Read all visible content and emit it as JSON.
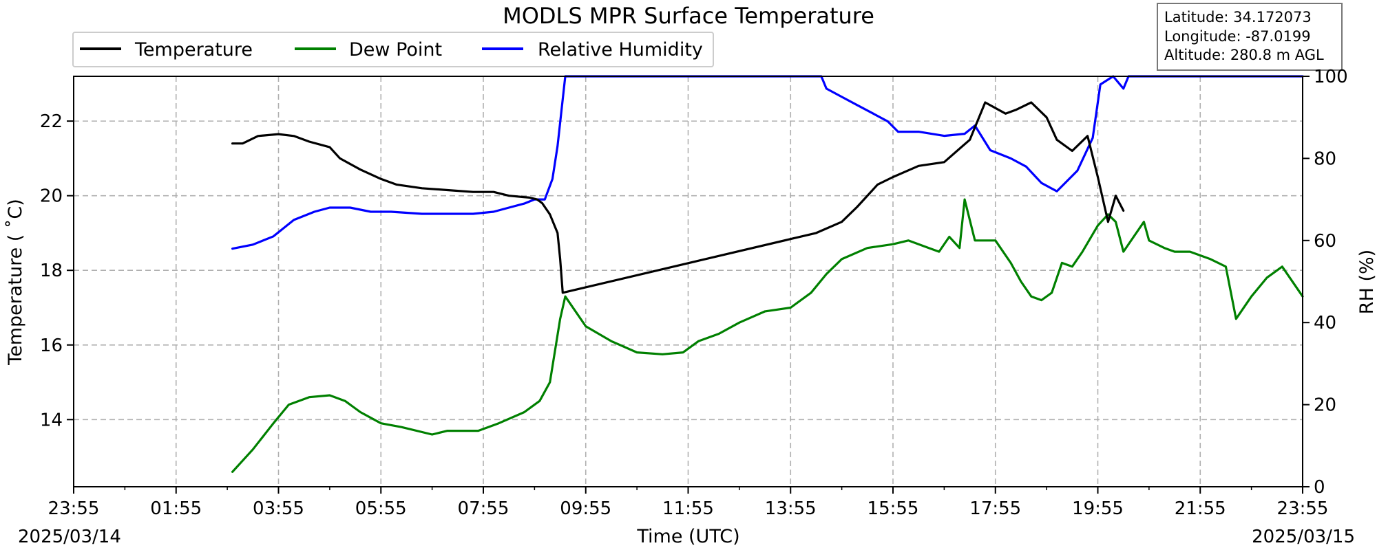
{
  "chart_data": {
    "type": "line",
    "title": "MODLS MPR Surface Temperature",
    "xlabel": "Time (UTC)",
    "ylabel": "Temperature ($^\\circ$C)",
    "ylabel_display": "Temperature ( ˚C)",
    "y2label": "RH (%)",
    "date_left": "2025/03/14",
    "date_right": "2025/03/15",
    "x_ticks": [
      "23:55",
      "01:55",
      "03:55",
      "05:55",
      "07:55",
      "09:55",
      "11:55",
      "13:55",
      "15:55",
      "17:55",
      "19:55",
      "21:55",
      "23:55"
    ],
    "x_range_hours": [
      0,
      24
    ],
    "ylim": [
      12.2,
      23.2
    ],
    "y_ticks": [
      14,
      16,
      18,
      20,
      22
    ],
    "y2lim": [
      0,
      100
    ],
    "y2_ticks": [
      0,
      20,
      40,
      60,
      80,
      100
    ],
    "grid": true,
    "legend_placement": "top-left, above plot",
    "colors": {
      "temperature": "#000000",
      "dewpoint": "#008000",
      "rh": "#0000ff"
    },
    "info_box": {
      "latitude": "Latitude: 34.172073",
      "longitude": "Longitude: -87.0199",
      "altitude": "Altitude: 280.8 m AGL"
    },
    "series": [
      {
        "name": "Temperature",
        "axis": "left",
        "color": "#000000",
        "x_hours": [
          3.1,
          3.3,
          3.6,
          4.0,
          4.3,
          4.6,
          5.0,
          5.2,
          5.6,
          6.0,
          6.3,
          6.8,
          7.3,
          7.8,
          8.2,
          8.5,
          8.9,
          9.05,
          9.15,
          9.3,
          9.45,
          9.5,
          9.55,
          14.5,
          15.0,
          15.3,
          15.7,
          16.0,
          16.5,
          17.0,
          17.5,
          17.8,
          18.2,
          18.4,
          18.7,
          19.0,
          19.2,
          19.5,
          19.8,
          20.0,
          20.2,
          20.35,
          20.5
        ],
        "y": [
          21.4,
          21.4,
          21.6,
          21.65,
          21.6,
          21.45,
          21.3,
          21.0,
          20.7,
          20.45,
          20.3,
          20.2,
          20.15,
          20.1,
          20.1,
          20.0,
          19.95,
          19.9,
          19.8,
          19.5,
          19.0,
          18.3,
          17.4,
          19.0,
          19.3,
          19.7,
          20.3,
          20.5,
          20.8,
          20.9,
          21.5,
          22.5,
          22.2,
          22.3,
          22.5,
          22.1,
          21.5,
          21.2,
          21.6,
          20.5,
          19.3,
          20.0,
          19.6
        ]
      },
      {
        "name": "Dew Point",
        "axis": "left",
        "color": "#008000",
        "x_hours": [
          3.1,
          3.5,
          3.9,
          4.2,
          4.6,
          5.0,
          5.3,
          5.6,
          6.0,
          6.4,
          7.0,
          7.3,
          7.9,
          8.3,
          8.8,
          9.1,
          9.3,
          9.5,
          9.6,
          10.0,
          10.5,
          11.0,
          11.5,
          11.9,
          12.2,
          12.6,
          13.0,
          13.5,
          14.0,
          14.4,
          14.7,
          15.0,
          15.5,
          16.0,
          16.3,
          16.7,
          16.9,
          17.1,
          17.3,
          17.4,
          17.6,
          18.0,
          18.3,
          18.5,
          18.7,
          18.9,
          19.1,
          19.3,
          19.5,
          19.7,
          20.0,
          20.2,
          20.35,
          20.5,
          20.9,
          21.0,
          21.3,
          21.5,
          21.8,
          22.2,
          22.5,
          22.7,
          23.0,
          23.3,
          23.6,
          24.0
        ],
        "y": [
          12.6,
          13.2,
          13.9,
          14.4,
          14.6,
          14.65,
          14.5,
          14.2,
          13.9,
          13.8,
          13.6,
          13.7,
          13.7,
          13.9,
          14.2,
          14.5,
          15.0,
          16.7,
          17.3,
          16.5,
          16.1,
          15.8,
          15.75,
          15.8,
          16.1,
          16.3,
          16.6,
          16.9,
          17.0,
          17.4,
          17.9,
          18.3,
          18.6,
          18.7,
          18.8,
          18.6,
          18.5,
          18.9,
          18.6,
          19.9,
          18.8,
          18.8,
          18.2,
          17.7,
          17.3,
          17.2,
          17.4,
          18.2,
          18.1,
          18.5,
          19.2,
          19.5,
          19.3,
          18.5,
          19.3,
          18.8,
          18.6,
          18.5,
          18.5,
          18.3,
          18.1,
          16.7,
          17.3,
          17.8,
          18.1,
          17.3
        ]
      },
      {
        "name": "Relative Humidity",
        "axis": "right",
        "color": "#0000ff",
        "x_hours": [
          3.1,
          3.5,
          3.9,
          4.3,
          4.7,
          5.0,
          5.4,
          5.8,
          6.2,
          6.8,
          7.3,
          7.8,
          8.2,
          8.5,
          8.8,
          9.0,
          9.2,
          9.35,
          9.45,
          9.6,
          14.6,
          14.7,
          15.0,
          15.3,
          15.6,
          15.9,
          16.1,
          16.5,
          17.0,
          17.4,
          17.6,
          17.9,
          18.3,
          18.6,
          18.9,
          19.2,
          19.6,
          19.9,
          20.05,
          20.3,
          20.5,
          20.6,
          21.0,
          22.0,
          23.0,
          24.0
        ],
        "y": [
          58,
          59,
          61,
          65,
          67,
          68,
          68,
          67,
          67,
          66.5,
          66.5,
          66.5,
          67,
          68,
          69,
          70,
          70,
          75,
          83,
          100,
          100,
          97,
          95,
          93,
          91,
          89,
          86.5,
          86.5,
          85.5,
          86,
          88,
          82,
          80,
          78,
          74,
          72,
          77,
          85,
          98,
          100,
          97,
          100,
          100,
          100,
          100,
          100
        ]
      }
    ]
  }
}
